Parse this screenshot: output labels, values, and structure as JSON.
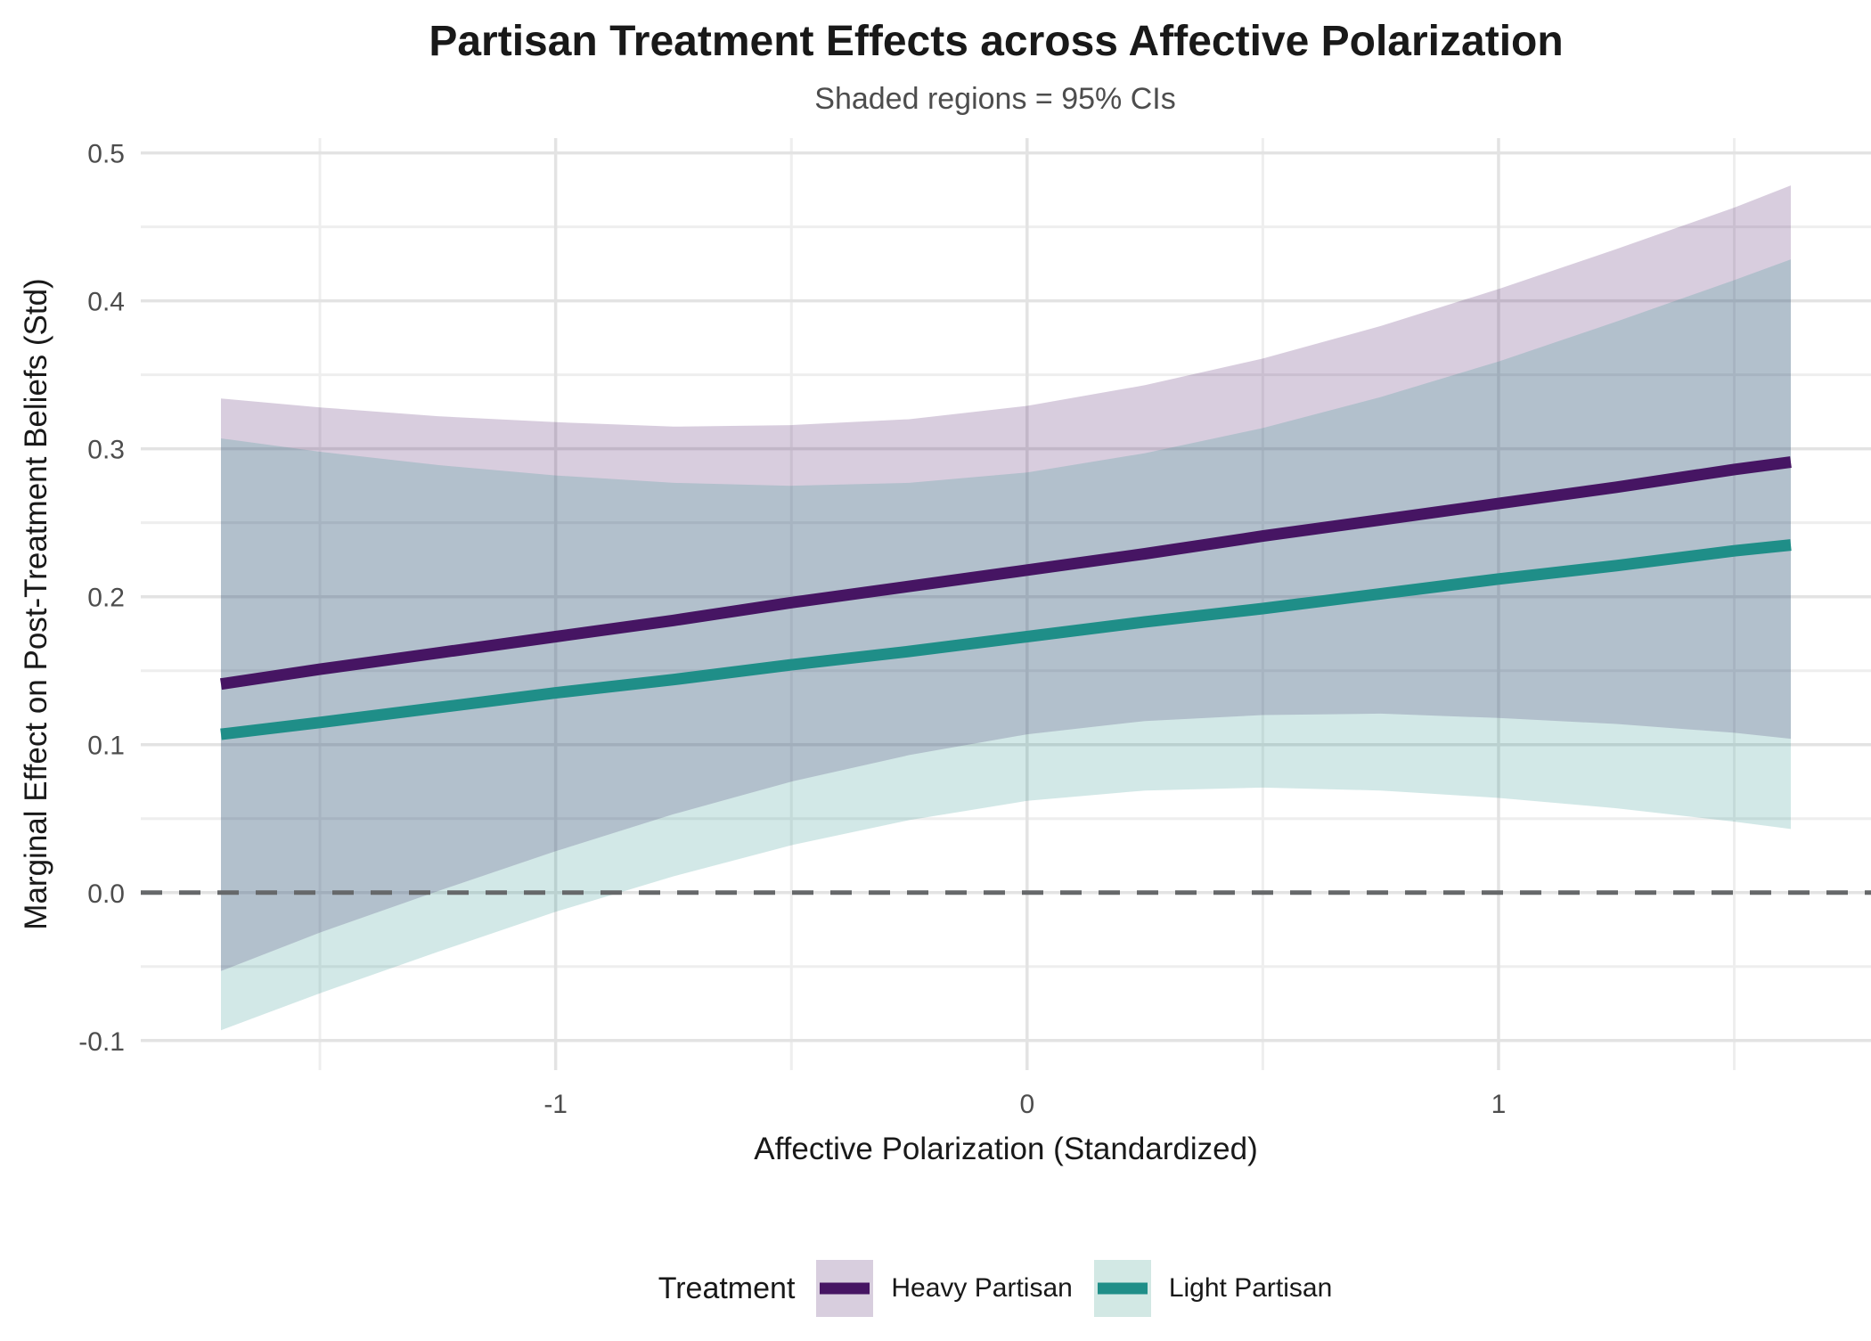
{
  "title": "Partisan Treatment Effects across Affective Polarization",
  "subtitle": "Shaded regions = 95% CIs",
  "x_axis": {
    "label": "Affective Polarization (Standardized)",
    "tick_labels": [
      "-1",
      "0",
      "1"
    ],
    "tick_values": [
      -1,
      0,
      1
    ]
  },
  "y_axis": {
    "label": "Marginal Effect on Post-Treatment Beliefs (Std)",
    "tick_labels": [
      "0.5",
      "0.4",
      "0.3",
      "0.2",
      "0.1",
      "0.0",
      "-0.1"
    ],
    "tick_values": [
      0.5,
      0.4,
      0.3,
      0.2,
      0.1,
      0.0,
      -0.1
    ]
  },
  "legend": {
    "title": "Treatment",
    "entries": [
      {
        "label": "Heavy Partisan",
        "line_color": "#461563",
        "fill_color": "#d8cede"
      },
      {
        "label": "Light Partisan",
        "line_color": "#1f8e88",
        "fill_color": "#d2e8e4"
      }
    ]
  },
  "reference_line": {
    "y": 0,
    "style": "dashed",
    "color": "#66686a"
  },
  "grid": {
    "major_color": "#e3e3e3",
    "minor_color": "#eeeeee"
  },
  "chart_data": {
    "type": "line",
    "title": "Partisan Treatment Effects across Affective Polarization",
    "subtitle": "Shaded regions = 95% CIs",
    "xlabel": "Affective Polarization (Standardized)",
    "ylabel": "Marginal Effect on Post-Treatment Beliefs (Std)",
    "xlim": [
      -1.88,
      1.79
    ],
    "ylim": [
      -0.12,
      0.51
    ],
    "x_major_gridlines": [
      -1,
      0,
      1
    ],
    "x_minor_gridlines": [
      -1.5,
      -0.5,
      0.5,
      1.5
    ],
    "y_major_gridlines": [
      0.5,
      0.4,
      0.3,
      0.2,
      0.1,
      0.0,
      -0.1
    ],
    "y_minor_gridlines": [
      0.45,
      0.35,
      0.25,
      0.15,
      0.05,
      -0.05
    ],
    "grid": true,
    "legend_position": "bottom",
    "ci_level": "95%",
    "series": [
      {
        "name": "Heavy Partisan",
        "color": "#461563",
        "ci_opacity": 0.21,
        "x": [
          -1.71,
          -1.5,
          -1.25,
          -1.0,
          -0.75,
          -0.5,
          -0.25,
          0.0,
          0.25,
          0.5,
          0.75,
          1.0,
          1.25,
          1.5,
          1.62
        ],
        "fit": [
          0.141,
          0.151,
          0.162,
          0.173,
          0.184,
          0.196,
          0.207,
          0.218,
          0.229,
          0.241,
          0.252,
          0.263,
          0.274,
          0.286,
          0.291
        ],
        "upper": [
          0.334,
          0.328,
          0.322,
          0.318,
          0.315,
          0.316,
          0.32,
          0.329,
          0.343,
          0.361,
          0.383,
          0.408,
          0.435,
          0.463,
          0.478
        ],
        "lower": [
          -0.053,
          -0.027,
          0.001,
          0.028,
          0.053,
          0.075,
          0.093,
          0.107,
          0.116,
          0.12,
          0.121,
          0.118,
          0.114,
          0.108,
          0.104
        ]
      },
      {
        "name": "Light Partisan",
        "color": "#1f8e88",
        "ci_opacity": 0.2,
        "x": [
          -1.71,
          -1.5,
          -1.25,
          -1.0,
          -0.75,
          -0.5,
          -0.25,
          0.0,
          0.25,
          0.5,
          0.75,
          1.0,
          1.25,
          1.5,
          1.62
        ],
        "fit": [
          0.107,
          0.115,
          0.125,
          0.135,
          0.144,
          0.154,
          0.163,
          0.173,
          0.183,
          0.192,
          0.202,
          0.212,
          0.221,
          0.231,
          0.235
        ],
        "upper": [
          0.307,
          0.298,
          0.289,
          0.282,
          0.277,
          0.275,
          0.277,
          0.284,
          0.297,
          0.314,
          0.335,
          0.359,
          0.386,
          0.414,
          0.428
        ],
        "lower": [
          -0.093,
          -0.068,
          -0.04,
          -0.013,
          0.011,
          0.032,
          0.049,
          0.062,
          0.069,
          0.071,
          0.069,
          0.064,
          0.057,
          0.048,
          0.043
        ]
      }
    ]
  }
}
